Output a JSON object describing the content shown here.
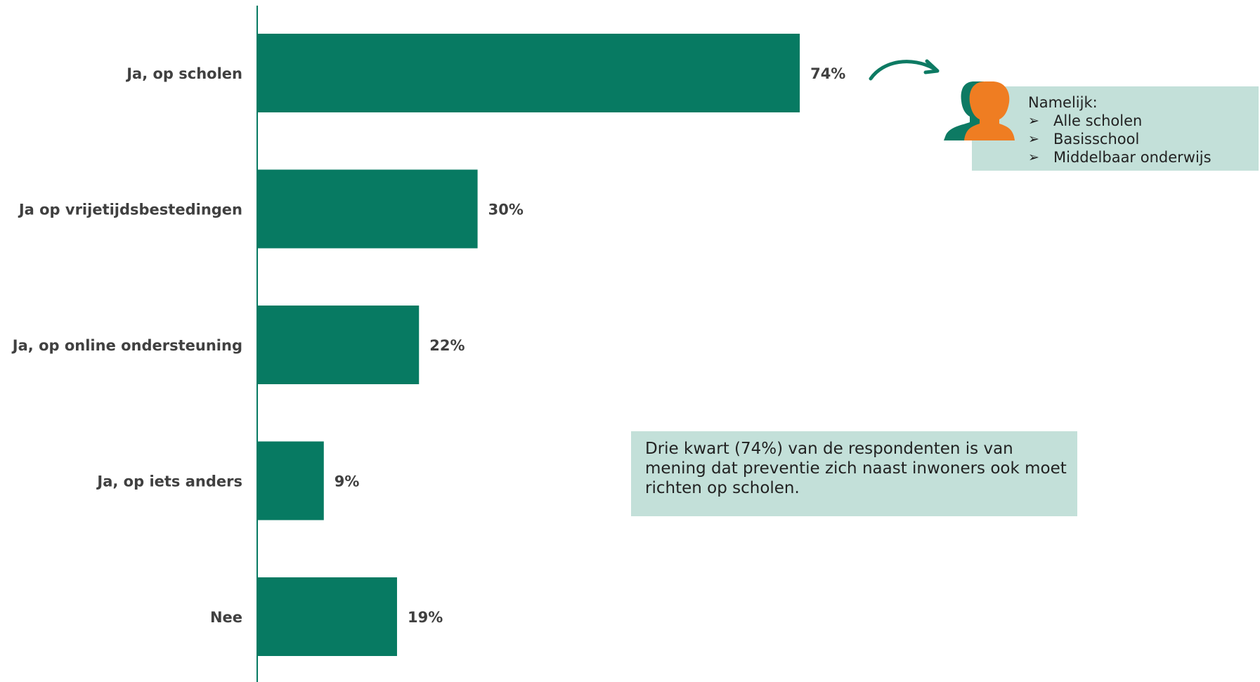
{
  "chart_data": {
    "type": "bar",
    "orientation": "horizontal",
    "categories": [
      "Ja, op scholen",
      "Ja op vrijetijdsbestedingen",
      "Ja, op online ondersteuning",
      "Ja, op iets anders",
      "Nee"
    ],
    "values": [
      74,
      30,
      22,
      9,
      19
    ],
    "value_labels": [
      "74%",
      "30%",
      "22%",
      "9%",
      "19%"
    ],
    "unit": "%",
    "xlim": [
      0,
      100
    ],
    "grid": false,
    "legend": "none"
  },
  "callout": {
    "heading": "Namelijk:",
    "bullet_icon": "arrowhead-bullet-icon",
    "items": [
      "Alle scholen",
      "Basisschool",
      "Middelbaar onderwijs"
    ]
  },
  "summary": {
    "text": "Drie kwart (74%) van de respondenten is van mening dat preventie zich naast inwoners ook moet richten op scholen."
  },
  "icons": {
    "person": "person-icon",
    "arrow": "curved-arrow-icon"
  },
  "colors": {
    "bar": "#077a62",
    "axis": "#077a62",
    "label": "#404040",
    "box_bg": "#c3e0d9",
    "person_back": "#0d7a63",
    "person_front": "#ef7d22",
    "arrow": "#0d7a63"
  }
}
